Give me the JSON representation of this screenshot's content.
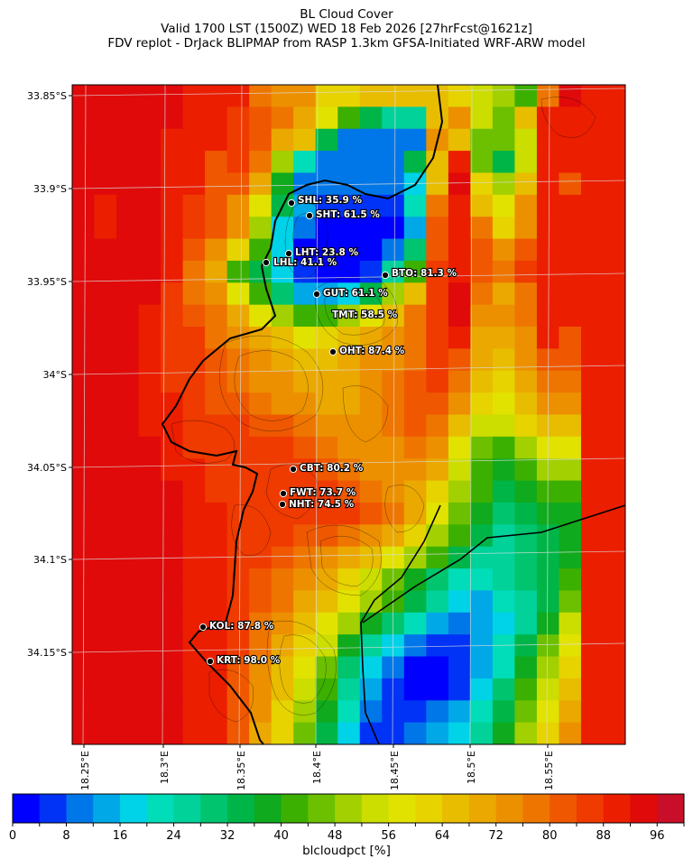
{
  "title": {
    "line1": "BL Cloud Cover",
    "line2": "Valid 1700 LST (1500Z) WED 18 Feb 2026 [27hrFcst@1621z]",
    "line3": "FDV replot - DrJack BLIPMAP from RASP 1.3km GFSA-Initiated WRF-ARW model"
  },
  "axes": {
    "lat_ticks": [
      "33.85°S",
      "33.9°S",
      "33.95°S",
      "34°S",
      "34.05°S",
      "34.1°S",
      "34.15°S"
    ],
    "lon_ticks": [
      "18.25°E",
      "18.3°E",
      "18.35°E",
      "18.4°E",
      "18.45°E",
      "18.5°E",
      "18.55°E"
    ]
  },
  "sites": [
    {
      "label": "SHL: 35.9 %"
    },
    {
      "label": "SHT: 61.5 %"
    },
    {
      "label": "LHT: 23.8 %"
    },
    {
      "label": "LHL: 41.1 %"
    },
    {
      "label": "BTO: 81.3 %"
    },
    {
      "label": "GUT: 61.1 %"
    },
    {
      "label": "TMT: 58.5 %"
    },
    {
      "label": "OHT: 87.4 %"
    },
    {
      "label": "CBT: 80.2 %"
    },
    {
      "label": "FWT: 73.7 %"
    },
    {
      "label": "NHT: 74.5 %"
    },
    {
      "label": "KOL: 87.8 %"
    },
    {
      "label": "KRT: 98.0 %"
    }
  ],
  "colorbar": {
    "label": "blcloudpct [%]",
    "ticks": [
      "0",
      "8",
      "16",
      "24",
      "32",
      "40",
      "48",
      "56",
      "64",
      "72",
      "80",
      "88",
      "96"
    ],
    "range": [
      0,
      100
    ],
    "colors": [
      "#0000ff",
      "#0033f5",
      "#0077e8",
      "#00a8e8",
      "#00d2e8",
      "#00ddb8",
      "#00d29a",
      "#00c46e",
      "#00b548",
      "#10aa1e",
      "#3cb000",
      "#6cc000",
      "#a2d000",
      "#ccdd00",
      "#e2e200",
      "#e6d300",
      "#e8bd00",
      "#eaa800",
      "#ec9000",
      "#ee7600",
      "#ef5800",
      "#ef3a00",
      "#ec1e00",
      "#e00a0a",
      "#c80e28"
    ]
  }
}
